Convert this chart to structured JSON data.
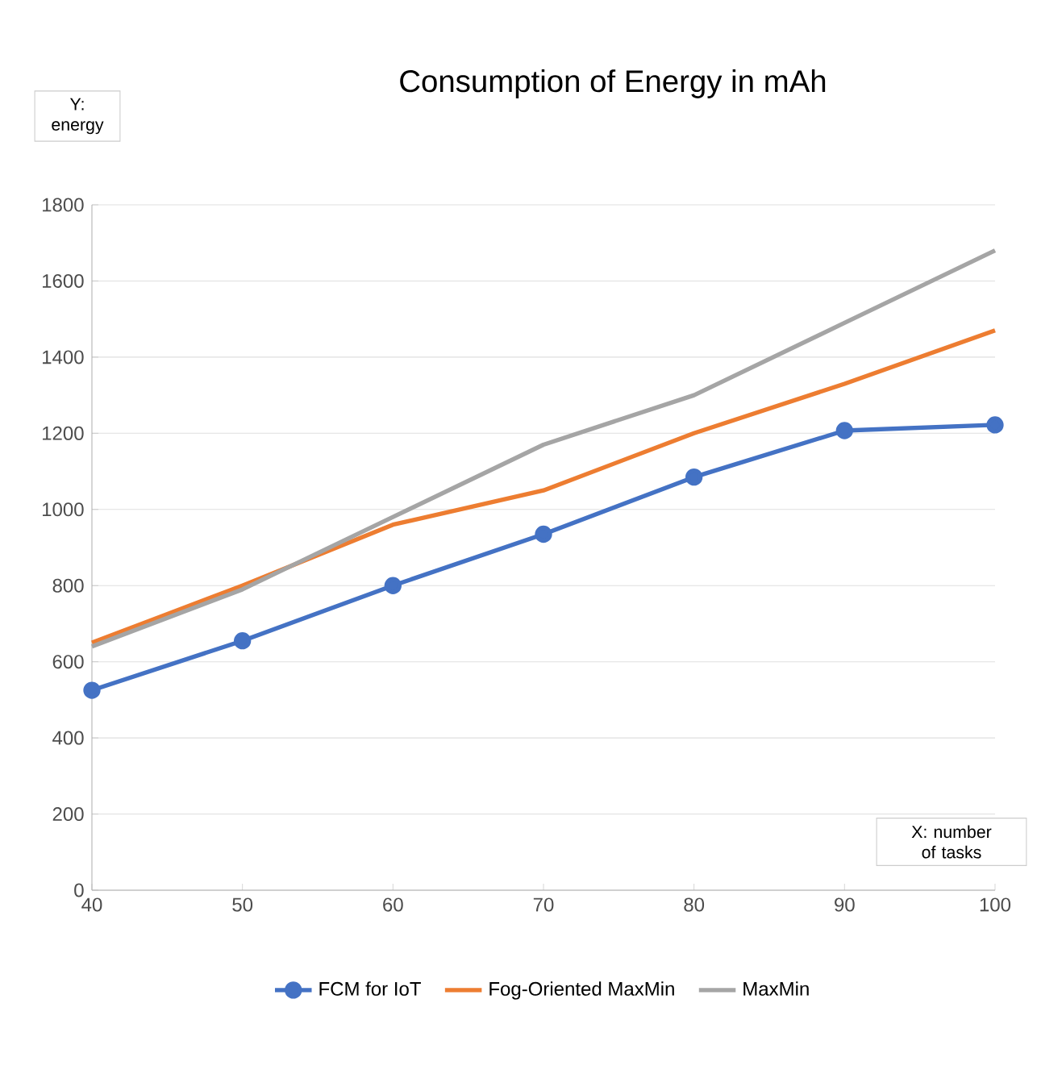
{
  "chart_data": {
    "type": "line",
    "title": "Consumption of Energy in mAh",
    "ylabel": "Y: energy",
    "xlabel": "X: number of tasks",
    "x": [
      40,
      50,
      60,
      70,
      80,
      90,
      100
    ],
    "series": [
      {
        "name": "FCM for IoT",
        "color": "#4472c4",
        "marker": "circle",
        "values": [
          525,
          655,
          800,
          935,
          1085,
          1207,
          1222
        ]
      },
      {
        "name": "Fog-Oriented MaxMin",
        "color": "#ed7d31",
        "marker": "none",
        "values": [
          650,
          800,
          960,
          1050,
          1200,
          1330,
          1470
        ]
      },
      {
        "name": "MaxMin",
        "color": "#a5a5a5",
        "marker": "none",
        "values": [
          640,
          790,
          980,
          1170,
          1300,
          1490,
          1680
        ]
      }
    ],
    "xlim": [
      40,
      100
    ],
    "ylim": [
      0,
      1800
    ],
    "xticks": [
      40,
      50,
      60,
      70,
      80,
      90,
      100
    ],
    "yticks": [
      0,
      200,
      400,
      600,
      800,
      1000,
      1200,
      1400,
      1600,
      1800
    ],
    "grid": "y",
    "legend": "bottom",
    "line_style": "solid"
  }
}
